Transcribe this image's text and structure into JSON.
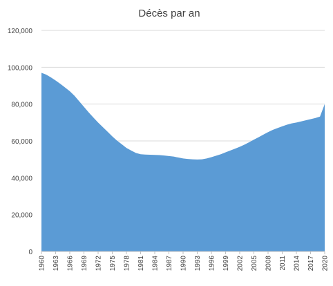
{
  "chart_data": {
    "type": "area",
    "title": "Décès par an",
    "xlabel": "",
    "ylabel": "",
    "ylim": [
      0,
      120000
    ],
    "yticks": [
      "0",
      "20,000",
      "40,000",
      "60,000",
      "80,000",
      "100,000",
      "120,000"
    ],
    "ytick_values": [
      0,
      20000,
      40000,
      60000,
      80000,
      100000,
      120000
    ],
    "xtick_labels": [
      "1960",
      "1963",
      "1966",
      "1969",
      "1972",
      "1975",
      "1978",
      "1981",
      "1984",
      "1987",
      "1990",
      "1993",
      "1996",
      "1999",
      "2002",
      "2005",
      "2008",
      "2011",
      "2014",
      "2017",
      "2020"
    ],
    "grid": true,
    "legend": "none",
    "color": "#5b9bd5",
    "x": [
      1960,
      1961,
      1962,
      1963,
      1964,
      1965,
      1966,
      1967,
      1968,
      1969,
      1970,
      1971,
      1972,
      1973,
      1974,
      1975,
      1976,
      1977,
      1978,
      1979,
      1980,
      1981,
      1982,
      1983,
      1984,
      1985,
      1986,
      1987,
      1988,
      1989,
      1990,
      1991,
      1992,
      1993,
      1994,
      1995,
      1996,
      1997,
      1998,
      1999,
      2000,
      2001,
      2002,
      2003,
      2004,
      2005,
      2006,
      2007,
      2008,
      2009,
      2010,
      2011,
      2012,
      2013,
      2014,
      2015,
      2016,
      2017,
      2018,
      2019,
      2020
    ],
    "values": [
      97000,
      96000,
      94500,
      92800,
      91000,
      89000,
      87000,
      84500,
      81500,
      78500,
      75500,
      72700,
      70000,
      67500,
      65000,
      62500,
      60200,
      58200,
      56200,
      54800,
      53500,
      52800,
      52600,
      52500,
      52400,
      52300,
      52100,
      51800,
      51500,
      51000,
      50500,
      50200,
      50000,
      49900,
      50000,
      50500,
      51200,
      52000,
      52800,
      53800,
      54800,
      55800,
      56800,
      58000,
      59300,
      60700,
      62000,
      63400,
      64800,
      66000,
      67000,
      67900,
      68800,
      69500,
      70000,
      70600,
      71200,
      71800,
      72400,
      73200,
      80000
    ]
  }
}
